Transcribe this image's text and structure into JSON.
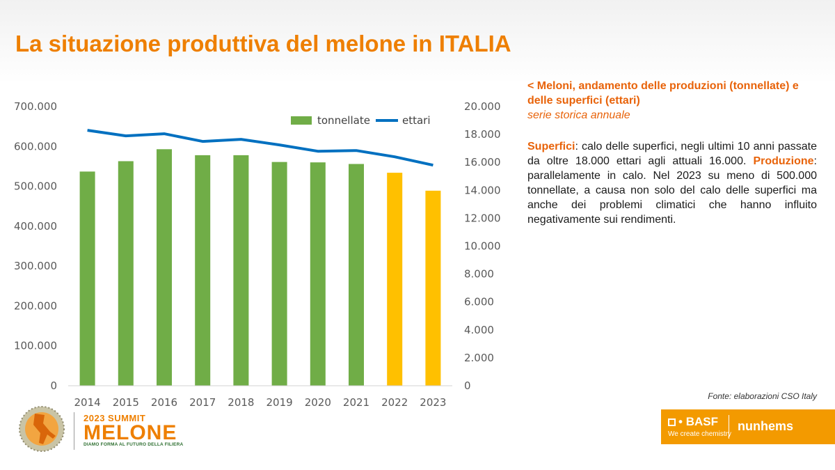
{
  "slide": {
    "title": "La situazione produttiva del melone in ITALIA"
  },
  "panel": {
    "chart_title": "< Meloni, andamento delle produzioni (tonnellate) e delle superfici (ettari)",
    "chart_subtitle": "serie storica annuale",
    "superfici_label": "Superfici",
    "superfici_text": ": calo delle superfici, negli ultimi 10 anni passate da oltre 18.000 ettari agli attuali 16.000.",
    "produzione_label": "Produzione",
    "produzione_text": ": parallelamente in calo. Nel 2023 su meno di 500.000 tonnellate, a causa non solo del calo delle superfici ma anche dei problemi climatici che hanno influito negativamente sui rendimenti."
  },
  "source": "Fonte: elaborazioni CSO Italy",
  "footer": {
    "summit_top": "2023 SUMMIT",
    "summit_main": "MELONE",
    "summit_tagline": "DIAMO FORMA AL FUTURO DELLA FILIERA",
    "basf": "BASF",
    "basf_tagline": "We create chemistry",
    "nunhems": "nunhems"
  },
  "colors": {
    "accent": "#ee7f00",
    "bar_green": "#70ad47",
    "bar_yellow": "#ffc000",
    "line_blue": "#0070c0"
  },
  "chart_data": {
    "type": "bar",
    "categories": [
      "2014",
      "2015",
      "2016",
      "2017",
      "2018",
      "2019",
      "2020",
      "2021",
      "2022",
      "2023"
    ],
    "series": [
      {
        "name": "tonnellate",
        "type": "bar",
        "axis": "left",
        "values": [
          537000,
          563000,
          593000,
          578000,
          578000,
          561000,
          560000,
          556000,
          534000,
          489000
        ],
        "highlight_categories": [
          "2022",
          "2023"
        ]
      },
      {
        "name": "ettari",
        "type": "line",
        "axis": "right",
        "values": [
          18300,
          17900,
          18050,
          17500,
          17650,
          17250,
          16800,
          16850,
          16400,
          15800
        ]
      }
    ],
    "ylim_left": [
      0,
      700000
    ],
    "ylim_right": [
      0,
      20000
    ],
    "yticks_left": [
      "0",
      "100.000",
      "200.000",
      "300.000",
      "400.000",
      "500.000",
      "600.000",
      "700.000"
    ],
    "yticks_right": [
      "0",
      "2.000",
      "4.000",
      "6.000",
      "8.000",
      "10.000",
      "12.000",
      "14.000",
      "16.000",
      "18.000",
      "20.000"
    ],
    "grid": false,
    "legend_position": "top-right"
  }
}
